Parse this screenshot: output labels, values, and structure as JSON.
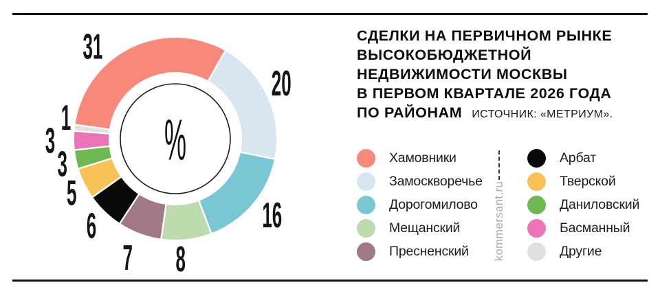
{
  "header": {
    "title_lines": [
      "СДЕЛКИ НА ПЕРВИЧНОМ РЫНКЕ",
      "ВЫСОКОБЮДЖЕТНОЙ",
      "НЕДВИЖИМОСТИ МОСКВЫ",
      "В ПЕРВОМ КВАРТАЛЕ 2026 ГОДА",
      "ПО РАЙОНАМ"
    ],
    "source": "ИСТОЧНИК: «МЕТРИУМ»."
  },
  "brand": "kommersant.ru",
  "chart_data": {
    "type": "pie",
    "subtype": "donut",
    "unit": "%",
    "center_label": "%",
    "start_angle_deg": -82,
    "direction": "clockwise",
    "legend_position": "right",
    "categories": [
      "Хамовники",
      "Замоскворечье",
      "Дорогомилово",
      "Мещанский",
      "Пресненский",
      "Арбат",
      "Тверской",
      "Даниловский",
      "Басманный",
      "Другие"
    ],
    "values": [
      31,
      20,
      16,
      8,
      7,
      6,
      5,
      3,
      3,
      1
    ],
    "colors": [
      "#F8897A",
      "#D8E6F2",
      "#79C6D5",
      "#BCDAAC",
      "#A07886",
      "#0A0A0A",
      "#F9C256",
      "#6DB950",
      "#EA74B5",
      "#E0E0E0"
    ]
  }
}
